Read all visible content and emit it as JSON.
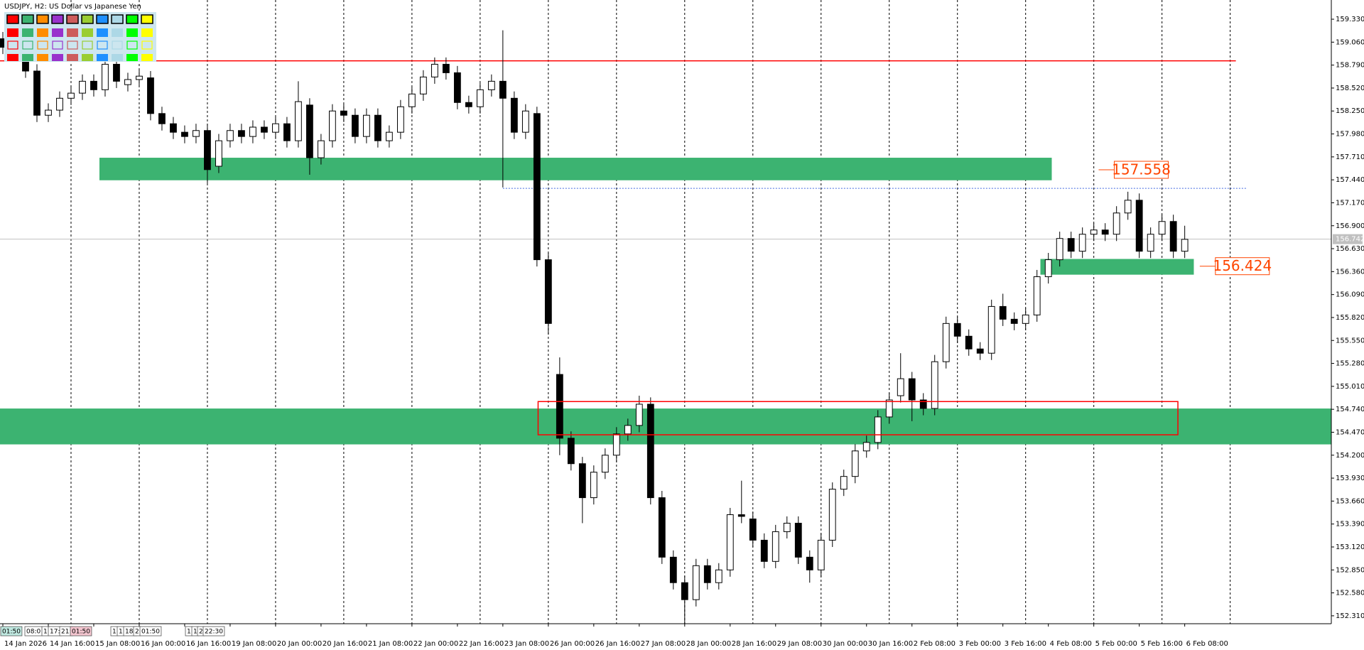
{
  "chart_data": {
    "type": "candlestick",
    "title": "USDJPY, H2:  US Dollar vs Japanese Yen",
    "up_color": "#ffffff",
    "down_color": "#000000",
    "edge_color": "#000000",
    "xlim": [
      -0.25,
      116.9
    ],
    "ylim": [
      152.217,
      159.556
    ],
    "xticks": [
      {
        "value": 0,
        "label": "14 Jan 2026"
      },
      {
        "value": 4,
        "label": "14 Jan 16:00"
      },
      {
        "value": 8,
        "label": "15 Jan 08:00"
      },
      {
        "value": 12,
        "label": "16 Jan 00:00"
      },
      {
        "value": 16,
        "label": "16 Jan 16:00"
      },
      {
        "value": 20,
        "label": "19 Jan 08:00"
      },
      {
        "value": 24,
        "label": "20 Jan 00:00"
      },
      {
        "value": 28,
        "label": "20 Jan 16:00"
      },
      {
        "value": 32,
        "label": "21 Jan 08:00"
      },
      {
        "value": 36,
        "label": "22 Jan 00:00"
      },
      {
        "value": 40,
        "label": "22 Jan 16:00"
      },
      {
        "value": 44,
        "label": "23 Jan 08:00"
      },
      {
        "value": 48,
        "label": "26 Jan 00:00"
      },
      {
        "value": 52,
        "label": "26 Jan 16:00"
      },
      {
        "value": 56,
        "label": "27 Jan 08:00"
      },
      {
        "value": 60,
        "label": "28 Jan 00:00"
      },
      {
        "value": 64,
        "label": "28 Jan 16:00"
      },
      {
        "value": 68,
        "label": "29 Jan 08:00"
      },
      {
        "value": 72,
        "label": "30 Jan 00:00"
      },
      {
        "value": 76,
        "label": "30 Jan 16:00"
      },
      {
        "value": 80,
        "label": "2 Feb 08:00"
      },
      {
        "value": 84,
        "label": "3 Feb 00:00"
      },
      {
        "value": 88,
        "label": "3 Feb 16:00"
      },
      {
        "value": 92,
        "label": "4 Feb 08:00"
      },
      {
        "value": 96,
        "label": "5 Feb 00:00"
      },
      {
        "value": 100,
        "label": "5 Feb 16:00"
      },
      {
        "value": 104,
        "label": "6 Feb 08:00"
      }
    ],
    "xgrid": [
      6,
      12,
      18,
      24,
      30,
      36,
      42,
      48,
      54,
      60,
      66,
      72,
      78,
      84,
      90,
      96,
      102,
      108
    ],
    "yticks": [
      {
        "value": 159.33,
        "label": "159.330"
      },
      {
        "value": 159.06,
        "label": "159.060"
      },
      {
        "value": 158.79,
        "label": "158.790"
      },
      {
        "value": 158.52,
        "label": "158.520"
      },
      {
        "value": 158.25,
        "label": "158.250"
      },
      {
        "value": 157.98,
        "label": "157.980"
      },
      {
        "value": 157.71,
        "label": "157.710"
      },
      {
        "value": 157.44,
        "label": "157.440"
      },
      {
        "value": 157.17,
        "label": "157.170"
      },
      {
        "value": 156.9,
        "label": "156.900"
      },
      {
        "value": 156.63,
        "label": "156.630"
      },
      {
        "value": 156.36,
        "label": "156.360"
      },
      {
        "value": 156.09,
        "label": "156.090"
      },
      {
        "value": 155.82,
        "label": "155.820"
      },
      {
        "value": 155.55,
        "label": "155.550"
      },
      {
        "value": 155.28,
        "label": "155.280"
      },
      {
        "value": 155.01,
        "label": "155.010"
      },
      {
        "value": 154.74,
        "label": "154.740"
      },
      {
        "value": 154.47,
        "label": "154.470"
      },
      {
        "value": 154.2,
        "label": "154.200"
      },
      {
        "value": 153.93,
        "label": "153.930"
      },
      {
        "value": 153.66,
        "label": "153.660"
      },
      {
        "value": 153.39,
        "label": "153.390"
      },
      {
        "value": 153.12,
        "label": "153.120"
      },
      {
        "value": 152.85,
        "label": "152.850"
      },
      {
        "value": 152.58,
        "label": "152.580"
      },
      {
        "value": 152.31,
        "label": "152.310"
      }
    ],
    "open": [
      159.1,
      159.0,
      158.92,
      158.72,
      158.2,
      158.26,
      158.4,
      158.46,
      158.6,
      158.5,
      158.8,
      158.56,
      158.62,
      158.64,
      158.22,
      158.1,
      158.0,
      157.95,
      158.02,
      157.6,
      157.9,
      158.02,
      157.95,
      158.06,
      158.0,
      158.1,
      157.9,
      158.32,
      157.7,
      157.9,
      158.25,
      158.2,
      157.95,
      158.2,
      157.9,
      158.0,
      158.3,
      158.45,
      158.65,
      158.8,
      158.7,
      158.35,
      158.3,
      158.5,
      158.6,
      158.4,
      158.0,
      158.22,
      156.5,
      155.15,
      154.4,
      154.1,
      153.7,
      154.0,
      154.2,
      154.45,
      154.55,
      154.8,
      153.7,
      153.0,
      152.7,
      152.5,
      152.9,
      152.7,
      152.85,
      153.5,
      153.45,
      153.2,
      152.95,
      153.3,
      153.4,
      153.0,
      152.85,
      153.2,
      153.8,
      153.95,
      154.25,
      154.35,
      154.65,
      154.9,
      155.1,
      154.85,
      154.75,
      155.3,
      155.75,
      155.6,
      155.45,
      155.4,
      155.95,
      155.8,
      155.75,
      155.85,
      156.3,
      156.5,
      156.75,
      156.6,
      156.8,
      156.85,
      156.8,
      157.05,
      157.2,
      156.6,
      156.8,
      156.95,
      156.6
    ],
    "high": [
      159.18,
      159.08,
      159.0,
      158.8,
      158.34,
      158.48,
      158.54,
      158.68,
      158.68,
      158.9,
      158.88,
      158.7,
      158.74,
      158.72,
      158.3,
      158.18,
      158.08,
      158.1,
      158.1,
      157.98,
      158.1,
      158.1,
      158.14,
      158.14,
      158.18,
      158.18,
      158.6,
      158.4,
      157.98,
      158.33,
      158.33,
      158.28,
      158.28,
      158.28,
      158.08,
      158.38,
      158.53,
      158.73,
      158.88,
      158.88,
      158.78,
      158.43,
      158.58,
      158.68,
      159.2,
      158.48,
      158.33,
      158.3,
      156.58,
      155.35,
      154.48,
      154.18,
      154.08,
      154.28,
      154.53,
      154.63,
      154.9,
      154.88,
      153.78,
      153.08,
      152.78,
      152.98,
      152.98,
      152.93,
      153.58,
      153.9,
      153.53,
      153.28,
      153.38,
      153.48,
      153.48,
      153.08,
      153.28,
      153.88,
      154.03,
      154.33,
      154.43,
      154.73,
      154.93,
      155.4,
      155.18,
      154.93,
      155.38,
      155.83,
      155.83,
      155.68,
      155.53,
      156.03,
      156.1,
      155.88,
      155.93,
      156.38,
      156.58,
      156.83,
      156.83,
      156.88,
      156.93,
      156.93,
      157.13,
      157.3,
      157.28,
      156.88,
      157.03,
      157.03,
      156.9
    ],
    "low": [
      158.92,
      158.84,
      158.64,
      158.12,
      158.12,
      158.18,
      158.32,
      158.38,
      158.42,
      158.42,
      158.52,
      158.48,
      158.54,
      158.14,
      158.02,
      157.92,
      157.87,
      157.87,
      157.4,
      157.52,
      157.82,
      157.87,
      157.87,
      157.92,
      157.92,
      157.82,
      157.82,
      157.5,
      157.62,
      157.82,
      158.12,
      157.87,
      157.87,
      157.82,
      157.82,
      157.92,
      158.22,
      158.37,
      158.57,
      158.62,
      158.27,
      158.22,
      158.22,
      158.42,
      157.35,
      157.92,
      157.92,
      156.42,
      155.62,
      154.2,
      154.02,
      153.4,
      153.62,
      153.92,
      154.12,
      154.37,
      154.47,
      153.62,
      152.92,
      152.62,
      152.2,
      152.42,
      152.62,
      152.62,
      152.77,
      153.4,
      153.12,
      152.87,
      152.87,
      153.22,
      152.92,
      152.7,
      152.77,
      153.12,
      153.72,
      153.87,
      154.17,
      154.27,
      154.57,
      154.82,
      154.6,
      154.67,
      154.67,
      155.22,
      155.52,
      155.37,
      155.32,
      155.32,
      155.72,
      155.67,
      155.67,
      155.77,
      156.22,
      156.42,
      156.52,
      156.52,
      156.72,
      156.72,
      156.72,
      156.97,
      156.52,
      156.52,
      156.72,
      156.52,
      156.52
    ],
    "close": [
      159.0,
      158.92,
      158.72,
      158.2,
      158.26,
      158.4,
      158.46,
      158.6,
      158.5,
      158.8,
      158.6,
      158.62,
      158.66,
      158.22,
      158.1,
      158.0,
      157.95,
      158.02,
      157.56,
      157.9,
      158.02,
      157.95,
      158.06,
      158.0,
      158.1,
      157.9,
      158.36,
      157.7,
      157.9,
      158.25,
      158.2,
      157.95,
      158.2,
      157.9,
      158.0,
      158.3,
      158.45,
      158.65,
      158.8,
      158.7,
      158.35,
      158.3,
      158.5,
      158.6,
      158.4,
      158.0,
      158.25,
      156.5,
      155.75,
      154.4,
      154.1,
      153.7,
      154.0,
      154.2,
      154.45,
      154.55,
      154.8,
      153.7,
      153.0,
      152.7,
      152.5,
      152.9,
      152.7,
      152.85,
      153.5,
      153.48,
      153.2,
      152.95,
      153.3,
      153.4,
      153.0,
      152.85,
      153.2,
      153.8,
      153.95,
      154.25,
      154.35,
      154.65,
      154.85,
      155.1,
      154.85,
      154.75,
      155.3,
      155.75,
      155.6,
      155.45,
      155.4,
      155.95,
      155.8,
      155.75,
      155.85,
      156.3,
      156.5,
      156.75,
      156.6,
      156.8,
      156.85,
      156.8,
      157.05,
      157.2,
      156.6,
      156.8,
      156.95,
      156.6,
      156.74
    ],
    "last_price": 156.742,
    "zones": [
      {
        "x0": 8.5,
        "x1": 92.3,
        "top": 157.7,
        "bottom": 157.435,
        "color": "#3cb371"
      },
      {
        "x0": 91.3,
        "x1": 104.8,
        "top": 156.509,
        "bottom": 156.324,
        "color": "#3cb371"
      },
      {
        "x0": -0.25,
        "x1": 116.9,
        "top": 154.749,
        "bottom": 154.327,
        "color": "#3cb371"
      }
    ],
    "boxes": [
      {
        "x0": 47.1,
        "x1": 103.4,
        "top": 154.831,
        "bottom": 154.44,
        "color": "#ff0000"
      }
    ],
    "hlines": [
      {
        "value": 158.84,
        "x0": -0.25,
        "x1": 108.5,
        "color": "#ff0000",
        "style": "solid"
      },
      {
        "value": 157.34,
        "x0": 44,
        "x1": 109.5,
        "color": "#4169e1",
        "style": "dotted"
      }
    ],
    "price_labels": [
      {
        "value": 157.558,
        "x": 97.8,
        "color": "#ff4500"
      },
      {
        "value": 156.424,
        "x": 106.7,
        "color": "#ff4500"
      }
    ],
    "time_tags": [
      "01:50",
      "08:0",
      "1",
      "17:",
      "21:",
      "01:50",
      "1",
      "1",
      "18:",
      "2",
      "01:50",
      "1",
      "1",
      "2",
      "22:30"
    ]
  }
}
